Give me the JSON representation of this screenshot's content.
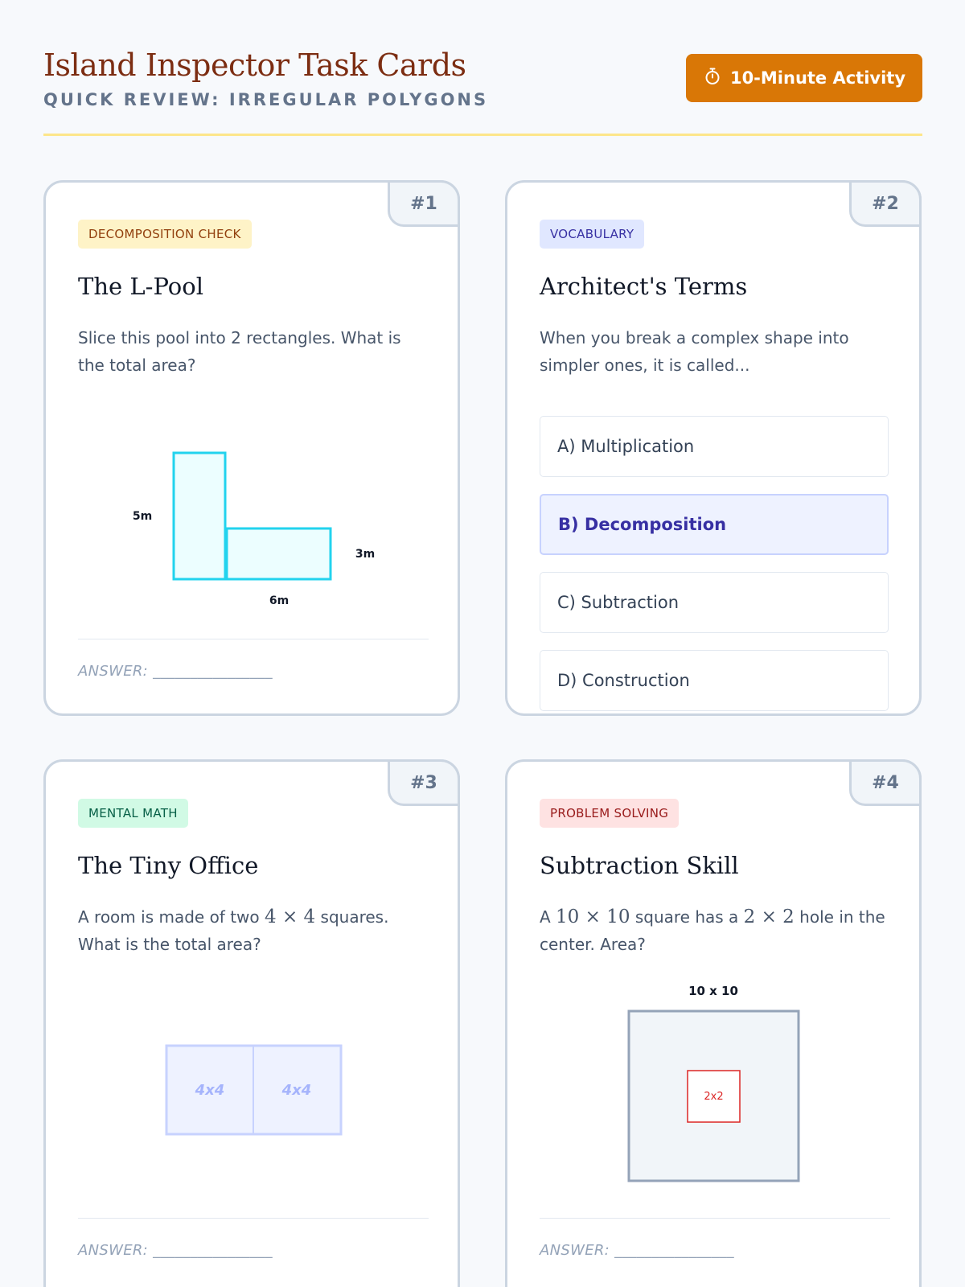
{
  "header": {
    "title": "Island Inspector Task Cards",
    "subtitle": "QUICK REVIEW: IRREGULAR POLYGONS",
    "timer_label": "10-Minute Activity"
  },
  "cards": [
    {
      "number": "#1",
      "badge": "DECOMPOSITION CHECK",
      "title": "The L-Pool",
      "text": "Slice this pool into 2 rectangles. What is the total area?",
      "diagram_labels": {
        "left": "5m",
        "right": "3m",
        "bottom": "6m"
      },
      "answer": "ANSWER: ________________"
    },
    {
      "number": "#2",
      "badge": "VOCABULARY",
      "title": "Architect's Terms",
      "text": "When you break a complex shape into simpler ones, it is called...",
      "options": [
        "A) Multiplication",
        "B) Decomposition",
        "C) Subtraction",
        "D) Construction"
      ],
      "selected_option": "B) Decomposition"
    },
    {
      "number": "#3",
      "badge": "MENTAL MATH",
      "title": "The Tiny Office",
      "text_before": "A room is made of two ",
      "text_math": "4 × 4",
      "text_after": " squares. What is the total area?",
      "diagram_labels": {
        "left": "4x4",
        "right": "4x4"
      },
      "answer": "ANSWER: ________________"
    },
    {
      "number": "#4",
      "badge": "PROBLEM SOLVING",
      "title": "Subtraction Skill",
      "text_part1": "A ",
      "text_math1": "10 × 10",
      "text_part2": " square has a ",
      "text_math2": "2 × 2",
      "text_part3": " hole in the center. Area?",
      "diagram_labels": {
        "outer": "10 x 10",
        "inner": "2x2"
      },
      "answer": "ANSWER: ________________"
    }
  ],
  "colors": {
    "accent_orange": "#d97706",
    "title_brown": "#7c2d12",
    "pool_cyan": "#22d3ee",
    "office_blue": "#c7d2fe",
    "hole_red": "#dc2626"
  }
}
